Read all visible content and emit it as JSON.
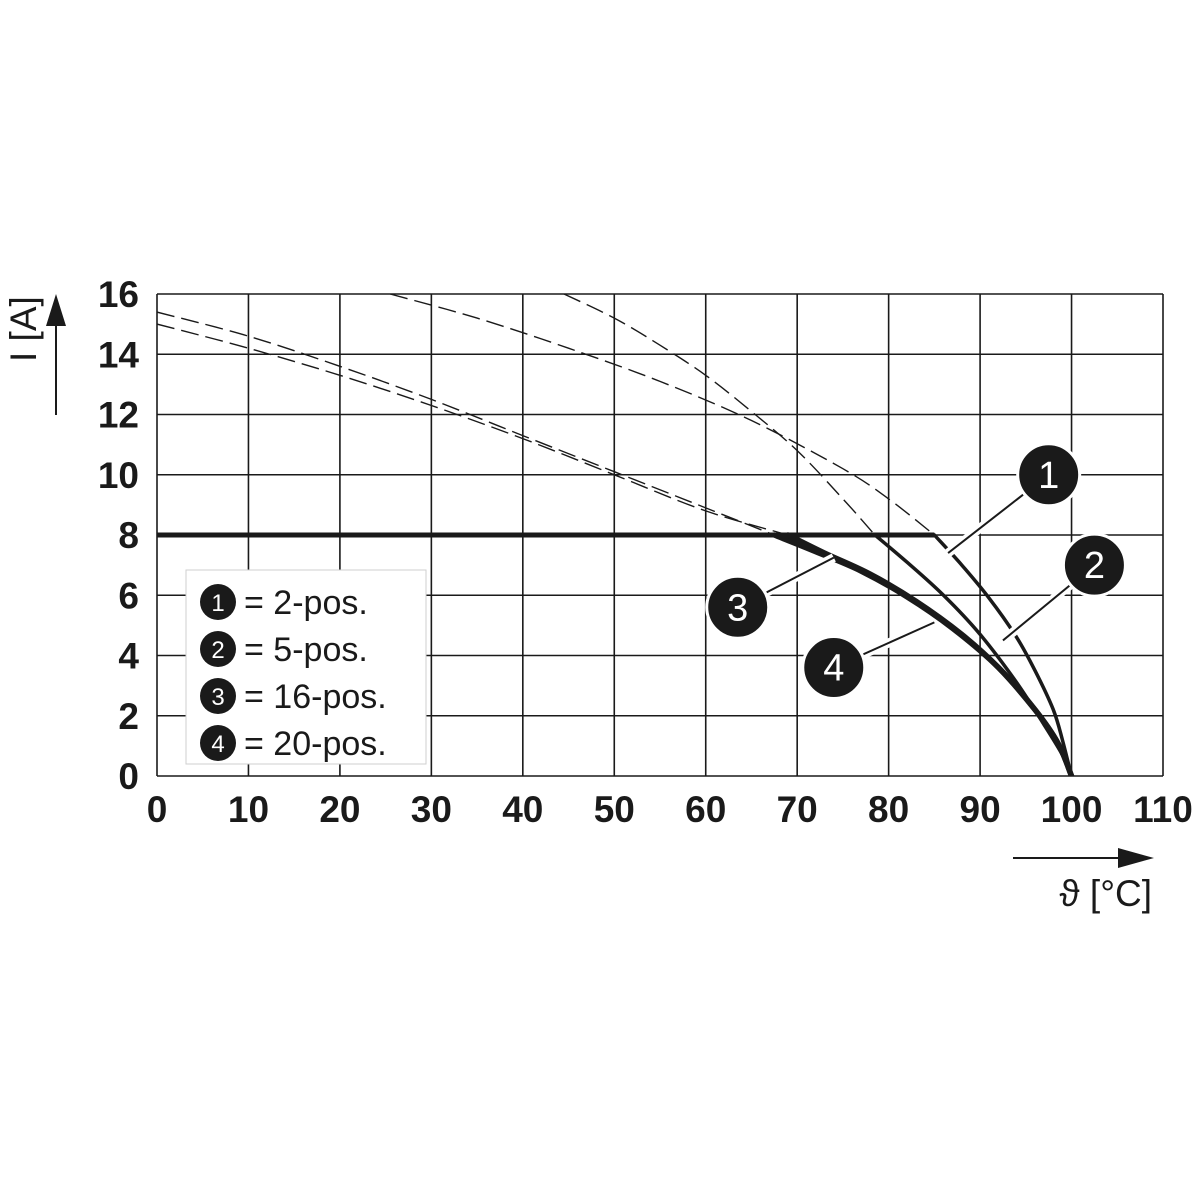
{
  "chart_data": {
    "type": "line",
    "xlabel": "ϑ [°C]",
    "ylabel": "I [A]",
    "xlim": [
      0,
      110
    ],
    "ylim": [
      0,
      16
    ],
    "xticks": [
      0,
      10,
      20,
      30,
      40,
      50,
      60,
      70,
      80,
      90,
      100,
      110
    ],
    "yticks": [
      0,
      2,
      4,
      6,
      8,
      10,
      12,
      14,
      16
    ],
    "grid": true,
    "limit_line": {
      "y": 8,
      "x": [
        0,
        85
      ]
    },
    "series": [
      {
        "name": "= 2-pos.",
        "marker": "1",
        "dashed": {
          "x": [
            25.5,
            35,
            45,
            55,
            65,
            75,
            80,
            85
          ],
          "y": [
            16.0,
            15.2,
            14.2,
            13.1,
            11.8,
            10.2,
            9.2,
            8.0
          ]
        },
        "solid": {
          "x": [
            85,
            88,
            91,
            94,
            96,
            98,
            99,
            100
          ],
          "y": [
            8.0,
            7.0,
            5.9,
            4.6,
            3.5,
            2.2,
            1.2,
            0.0
          ]
        }
      },
      {
        "name": "= 5-pos.",
        "marker": "2",
        "dashed": {
          "x": [
            44.5,
            50,
            55,
            60,
            65,
            70,
            75,
            78.5
          ],
          "y": [
            16.0,
            15.2,
            14.3,
            13.3,
            12.1,
            10.8,
            9.2,
            8.0
          ]
        },
        "solid": {
          "x": [
            78.5,
            82,
            86,
            90,
            94,
            97,
            99,
            100
          ],
          "y": [
            8.0,
            7.1,
            6.0,
            4.7,
            3.1,
            1.7,
            0.7,
            0.0
          ]
        }
      },
      {
        "name": "= 16-pos.",
        "marker": "3",
        "dashed": {
          "x": [
            0,
            10,
            20,
            30,
            40,
            50,
            60,
            67.5
          ],
          "y": [
            15.4,
            14.6,
            13.6,
            12.5,
            11.3,
            10.1,
            8.9,
            8.0
          ]
        },
        "solid": {
          "x": [
            67.5,
            72,
            77,
            82,
            87,
            92,
            96,
            98.5,
            100
          ],
          "y": [
            8.0,
            7.45,
            6.8,
            5.95,
            4.9,
            3.6,
            2.2,
            1.1,
            0.0
          ]
        }
      },
      {
        "name": "= 20-pos.",
        "marker": "4",
        "dashed": {
          "x": [
            0,
            10,
            20,
            30,
            40,
            50,
            60,
            69
          ],
          "y": [
            15.0,
            14.2,
            13.3,
            12.3,
            11.2,
            10.0,
            8.8,
            8.0
          ]
        },
        "solid": {
          "x": [
            69,
            73,
            78,
            83,
            88,
            92,
            96,
            98.5,
            100
          ],
          "y": [
            8.0,
            7.4,
            6.7,
            5.8,
            4.7,
            3.6,
            2.2,
            1.1,
            0.0
          ]
        }
      }
    ],
    "callouts": [
      {
        "marker": "1",
        "x": 97.5,
        "y": 10.0,
        "to_x": 86.5,
        "to_y": 7.4
      },
      {
        "marker": "2",
        "x": 102.5,
        "y": 7.0,
        "to_x": 92.5,
        "to_y": 4.5
      },
      {
        "marker": "3",
        "x": 63.5,
        "y": 5.6,
        "to_x": 74.0,
        "to_y": 7.25
      },
      {
        "marker": "4",
        "x": 74.0,
        "y": 3.6,
        "to_x": 85.0,
        "to_y": 5.1
      }
    ]
  }
}
